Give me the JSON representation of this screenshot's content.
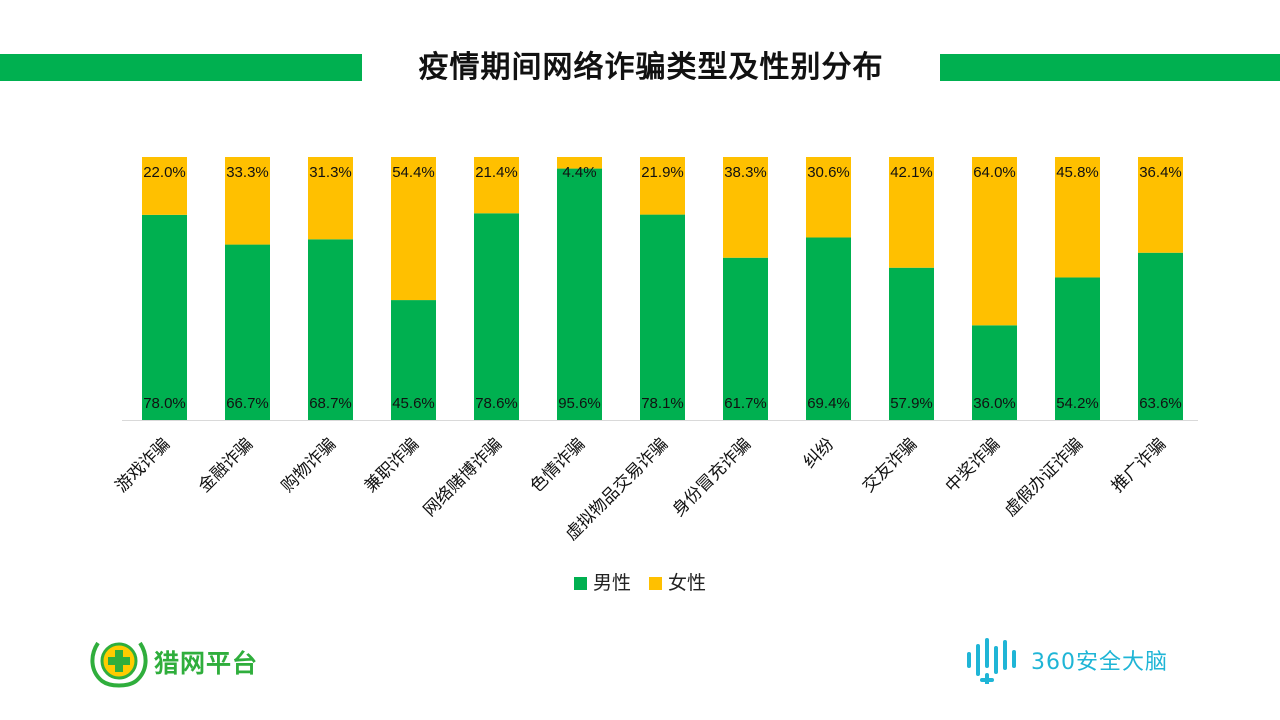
{
  "header": {
    "title": "疫情期间网络诈骗类型及性别分布"
  },
  "chart_data": {
    "type": "bar",
    "stacked": true,
    "title": "疫情期间网络诈骗类型及性别分布",
    "categories": [
      "游戏诈骗",
      "金融诈骗",
      "购物诈骗",
      "兼职诈骗",
      "网络赌博诈骗",
      "色情诈骗",
      "虚拟物品交易诈骗",
      "身份冒充诈骗",
      "纠纷",
      "交友诈骗",
      "中奖诈骗",
      "虚假办证诈骗",
      "推广诈骗"
    ],
    "series": [
      {
        "name": "男性",
        "color": "#00b050",
        "values": [
          78.0,
          66.7,
          68.7,
          45.6,
          78.6,
          95.6,
          78.1,
          61.7,
          69.4,
          57.9,
          36.0,
          54.2,
          63.6
        ]
      },
      {
        "name": "女性",
        "color": "#ffc000",
        "values": [
          22.0,
          33.3,
          31.3,
          54.4,
          21.4,
          4.4,
          21.9,
          38.3,
          30.6,
          42.1,
          64.0,
          45.8,
          36.4
        ]
      }
    ],
    "value_suffix": "%",
    "ylim": [
      0,
      100
    ],
    "grid": false,
    "legend_position": "bottom"
  },
  "legend": {
    "male_label": "男性",
    "female_label": "女性"
  },
  "logos": {
    "left_text": "猎网平台",
    "right_text": "360安全大脑"
  }
}
